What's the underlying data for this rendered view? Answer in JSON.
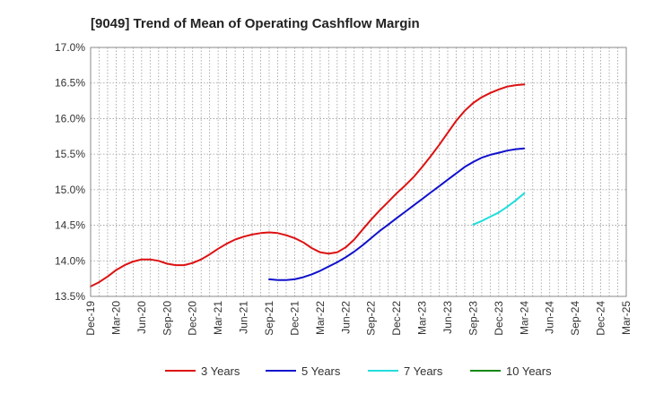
{
  "chart_data": {
    "type": "line",
    "title": "[9049]  Trend of Mean of Operating Cashflow Margin",
    "xlabel": "",
    "ylabel": "",
    "ylim": [
      13.5,
      17.0
    ],
    "y_ticks": [
      13.5,
      14.0,
      14.5,
      15.0,
      15.5,
      16.0,
      16.5,
      17.0
    ],
    "y_tick_labels": [
      "13.5%",
      "14.0%",
      "14.5%",
      "15.0%",
      "15.5%",
      "16.0%",
      "16.5%",
      "17.0%"
    ],
    "x_range_months": [
      0,
      63
    ],
    "x_ticks": [
      0,
      3,
      6,
      9,
      12,
      15,
      18,
      21,
      24,
      27,
      30,
      33,
      36,
      39,
      42,
      45,
      48,
      51,
      54,
      57,
      60,
      63
    ],
    "x_tick_labels": [
      "Dec-19",
      "Mar-20",
      "Jun-20",
      "Sep-20",
      "Dec-20",
      "Mar-21",
      "Jun-21",
      "Sep-21",
      "Dec-21",
      "Mar-22",
      "Jun-22",
      "Sep-22",
      "Dec-22",
      "Mar-23",
      "Jun-23",
      "Sep-23",
      "Dec-23",
      "Mar-24",
      "Jun-24",
      "Sep-24",
      "Dec-24",
      "Mar-25"
    ],
    "grid": true,
    "legend_position": "bottom",
    "series": [
      {
        "name": "3 Years",
        "color": "#dd1111",
        "x": [
          0,
          1,
          2,
          3,
          4,
          5,
          6,
          7,
          8,
          9,
          10,
          11,
          12,
          13,
          14,
          15,
          16,
          17,
          18,
          19,
          20,
          21,
          22,
          23,
          24,
          25,
          26,
          27,
          28,
          29,
          30,
          31,
          32,
          33,
          34,
          35,
          36,
          37,
          38,
          39,
          40,
          41,
          42,
          43,
          44,
          45,
          46,
          47,
          48,
          49,
          50,
          51
        ],
        "values": [
          13.64,
          13.7,
          13.78,
          13.87,
          13.94,
          13.99,
          14.02,
          14.02,
          14.0,
          13.96,
          13.94,
          13.94,
          13.97,
          14.02,
          14.09,
          14.17,
          14.24,
          14.3,
          14.34,
          14.37,
          14.39,
          14.4,
          14.39,
          14.36,
          14.32,
          14.26,
          14.18,
          14.12,
          14.1,
          14.12,
          14.19,
          14.3,
          14.44,
          14.58,
          14.71,
          14.83,
          14.95,
          15.06,
          15.18,
          15.32,
          15.47,
          15.63,
          15.8,
          15.97,
          16.11,
          16.22,
          16.3,
          16.36,
          16.41,
          16.45,
          16.47,
          16.48
        ]
      },
      {
        "name": "5 Years",
        "color": "#1111cc",
        "x": [
          21,
          22,
          23,
          24,
          25,
          26,
          27,
          28,
          29,
          30,
          31,
          32,
          33,
          34,
          35,
          36,
          37,
          38,
          39,
          40,
          41,
          42,
          43,
          44,
          45,
          46,
          47,
          48,
          49,
          50,
          51
        ],
        "values": [
          13.74,
          13.73,
          13.73,
          13.74,
          13.77,
          13.81,
          13.86,
          13.92,
          13.98,
          14.05,
          14.13,
          14.22,
          14.32,
          14.42,
          14.51,
          14.6,
          14.69,
          14.78,
          14.87,
          14.96,
          15.05,
          15.14,
          15.23,
          15.32,
          15.39,
          15.45,
          15.49,
          15.52,
          15.55,
          15.57,
          15.58
        ]
      },
      {
        "name": "7 Years",
        "color": "#22dddd",
        "x": [
          45,
          46,
          47,
          48,
          49,
          50,
          51
        ],
        "values": [
          14.51,
          14.56,
          14.62,
          14.68,
          14.76,
          14.85,
          14.95
        ]
      },
      {
        "name": "10 Years",
        "color": "#118811",
        "x": [],
        "values": []
      }
    ]
  }
}
